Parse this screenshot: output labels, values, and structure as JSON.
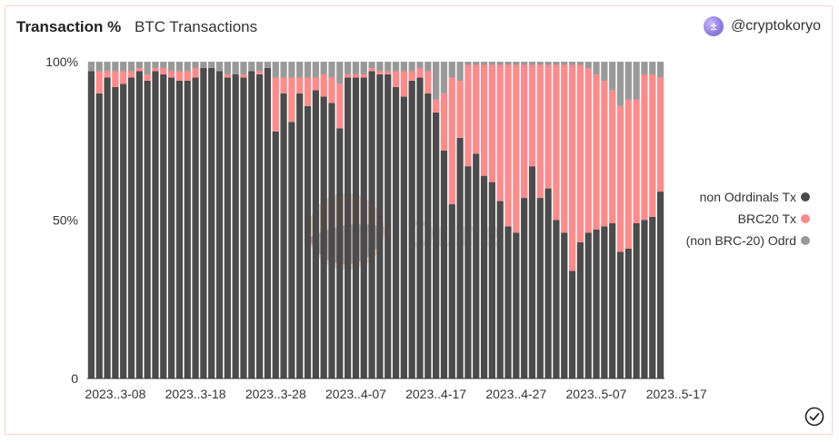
{
  "header": {
    "title": "Transaction %",
    "subtitle": "BTC Transactions",
    "author": "@cryptokoryo",
    "avatar_icon": "avatar-icon",
    "status_icon": "check-circle-icon"
  },
  "watermark": {
    "text": "Dune"
  },
  "colors": {
    "non_ordinals": "#4b4b4b",
    "brc20": "#ff8a8a",
    "non_brc20": "#999999",
    "axis": "#333333"
  },
  "chart_data": {
    "type": "bar",
    "stacked": true,
    "title": "Transaction %",
    "subtitle": "BTC Transactions",
    "y_tick_labels": [
      "100%",
      "50%",
      "0"
    ],
    "y_ticks": [
      1,
      0.5,
      0
    ],
    "ylim": [
      0,
      1
    ],
    "x_tick_labels": [
      "2023..3-08",
      "2023..3-18",
      "2023..3-28",
      "2023..4-07",
      "2023..4-17",
      "2023..4-27",
      "2023..5-07",
      "2023..5-17"
    ],
    "x_tick_positions": [
      3,
      13,
      23,
      33,
      43,
      53,
      63,
      73
    ],
    "legend_position": "right",
    "series": [
      {
        "name": "non Odrdinals Tx",
        "color": "#4b4b4b",
        "values": [
          0.97,
          0.9,
          0.95,
          0.92,
          0.93,
          0.95,
          0.97,
          0.94,
          0.97,
          0.96,
          0.95,
          0.94,
          0.94,
          0.95,
          0.98,
          0.98,
          0.97,
          0.95,
          0.96,
          0.95,
          0.97,
          0.96,
          0.98,
          0.78,
          0.9,
          0.81,
          0.9,
          0.86,
          0.91,
          0.89,
          0.87,
          0.79,
          0.95,
          0.95,
          0.95,
          0.97,
          0.96,
          0.96,
          0.92,
          0.89,
          0.94,
          0.95,
          0.9,
          0.84,
          0.72,
          0.55,
          0.76,
          0.67,
          0.71,
          0.64,
          0.62,
          0.56,
          0.48,
          0.46,
          0.57,
          0.67,
          0.57,
          0.6,
          0.5,
          0.46,
          0.34,
          0.43,
          0.46,
          0.47,
          0.48,
          0.49,
          0.4,
          0.41,
          0.49,
          0.5,
          0.51,
          0.59
        ]
      },
      {
        "name": "BRC20 Tx",
        "color": "#ff8a8a",
        "values": [
          0.0,
          0.07,
          0.02,
          0.05,
          0.04,
          0.02,
          0.01,
          0.02,
          0.01,
          0.02,
          0.02,
          0.03,
          0.03,
          0.03,
          0.0,
          0.0,
          0.0,
          0.01,
          0.0,
          0.01,
          0.0,
          0.01,
          0.0,
          0.17,
          0.05,
          0.14,
          0.05,
          0.09,
          0.04,
          0.07,
          0.08,
          0.14,
          0.01,
          0.01,
          0.01,
          0.01,
          0.01,
          0.01,
          0.05,
          0.08,
          0.03,
          0.03,
          0.07,
          0.04,
          0.18,
          0.4,
          0.18,
          0.32,
          0.28,
          0.35,
          0.37,
          0.43,
          0.51,
          0.53,
          0.42,
          0.32,
          0.42,
          0.39,
          0.49,
          0.53,
          0.65,
          0.56,
          0.52,
          0.49,
          0.46,
          0.42,
          0.46,
          0.47,
          0.39,
          0.46,
          0.45,
          0.36
        ]
      },
      {
        "name": "(non BRC-20) Odrd",
        "color": "#999999",
        "values": [
          0.03,
          0.03,
          0.03,
          0.03,
          0.03,
          0.03,
          0.02,
          0.04,
          0.02,
          0.02,
          0.03,
          0.03,
          0.03,
          0.02,
          0.02,
          0.02,
          0.03,
          0.04,
          0.04,
          0.04,
          0.03,
          0.03,
          0.02,
          0.05,
          0.05,
          0.05,
          0.05,
          0.05,
          0.05,
          0.04,
          0.05,
          0.07,
          0.04,
          0.04,
          0.04,
          0.02,
          0.03,
          0.03,
          0.03,
          0.03,
          0.03,
          0.02,
          0.03,
          0.12,
          0.1,
          0.05,
          0.06,
          0.01,
          0.01,
          0.01,
          0.01,
          0.01,
          0.01,
          0.01,
          0.01,
          0.01,
          0.01,
          0.01,
          0.01,
          0.01,
          0.01,
          0.01,
          0.02,
          0.04,
          0.06,
          0.09,
          0.14,
          0.12,
          0.12,
          0.04,
          0.04,
          0.05
        ]
      }
    ]
  }
}
